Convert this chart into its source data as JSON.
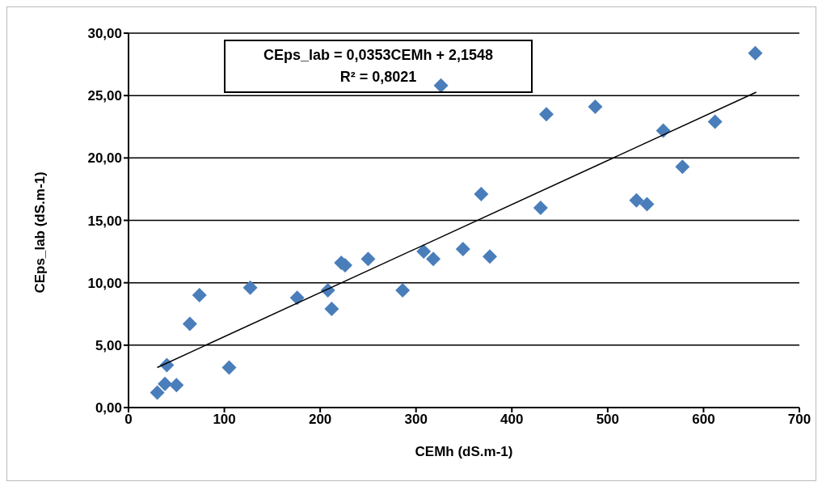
{
  "chart_data": {
    "type": "scatter",
    "xlabel": "CEMh (dS.m-1)",
    "ylabel": "CEps_lab (dS.m-1)",
    "annotations": [
      "CEps_lab = 0,0353CEMh + 2,1548",
      "R² = 0,8021"
    ],
    "xlim": [
      0,
      700
    ],
    "xticks": [
      0,
      100,
      200,
      300,
      400,
      500,
      600,
      700
    ],
    "ylim": [
      0,
      30
    ],
    "yticks": [
      {
        "value": 0,
        "label": "0,00"
      },
      {
        "value": 5,
        "label": "5,00"
      },
      {
        "value": 10,
        "label": "10,00"
      },
      {
        "value": 15,
        "label": "15,00"
      },
      {
        "value": 20,
        "label": "20,00"
      },
      {
        "value": 25,
        "label": "25,00"
      },
      {
        "value": 30,
        "label": "30,00"
      }
    ],
    "grid": "y",
    "marker": "diamond",
    "series": [
      {
        "color": "#4a7ebb",
        "x": [
          30,
          38,
          40,
          50,
          64,
          74,
          105,
          127,
          176,
          208,
          212,
          222,
          226,
          250,
          286,
          308,
          318,
          326,
          349,
          368,
          377,
          430,
          436,
          487,
          530,
          541,
          558,
          578,
          612,
          654
        ],
        "values": [
          1.2,
          1.9,
          3.4,
          1.8,
          6.7,
          9.0,
          3.2,
          9.6,
          8.8,
          9.4,
          7.9,
          11.6,
          11.4,
          11.9,
          9.4,
          12.5,
          11.9,
          25.8,
          12.7,
          17.1,
          12.1,
          16.0,
          23.5,
          24.1,
          16.6,
          16.3,
          22.2,
          19.3,
          22.9,
          28.4
        ]
      },
      {
        "type": "line",
        "color": "#000000",
        "marker": "none",
        "line_style": "solid",
        "x": [
          30,
          655
        ],
        "values": [
          3.21,
          25.27
        ]
      }
    ]
  }
}
